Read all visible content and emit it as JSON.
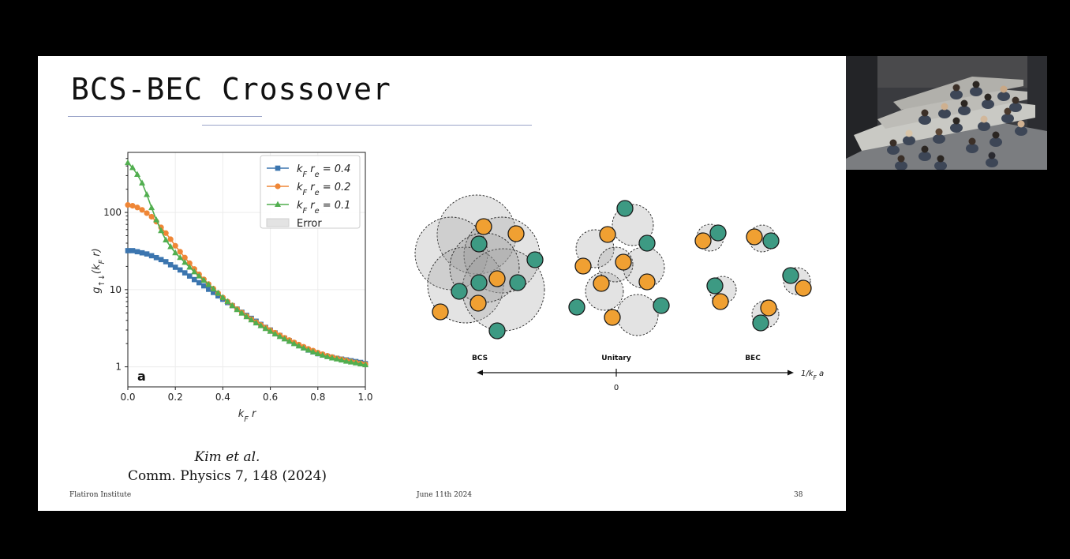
{
  "slide": {
    "title": "BCS-BEC Crossover",
    "footer_left": "Flatiron Institute",
    "footer_center": "June 11th 2024",
    "footer_right": "38"
  },
  "citation": {
    "authors": "Kim et al.",
    "journal": "Comm. Physics 7, 148 (2024)"
  },
  "chart_data": {
    "type": "line",
    "xlabel": "k_F r",
    "ylabel": "g_{↑↓}(k_F r)",
    "xlim": [
      0,
      1
    ],
    "ylim": [
      0.55,
      600
    ],
    "yscale": "log",
    "xticks": [
      "0.0",
      "0.2",
      "0.4",
      "0.6",
      "0.8",
      "1.0"
    ],
    "yticks": [
      "1",
      "10",
      "100"
    ],
    "panel_label": "a",
    "grid": true,
    "legend": "top-right",
    "legend_extra": "Error",
    "x": [
      0.0,
      0.02,
      0.04,
      0.06,
      0.08,
      0.1,
      0.12,
      0.14,
      0.16,
      0.18,
      0.2,
      0.22,
      0.24,
      0.26,
      0.28,
      0.3,
      0.32,
      0.34,
      0.36,
      0.38,
      0.4,
      0.42,
      0.44,
      0.46,
      0.48,
      0.5,
      0.52,
      0.54,
      0.56,
      0.58,
      0.6,
      0.62,
      0.64,
      0.66,
      0.68,
      0.7,
      0.72,
      0.74,
      0.76,
      0.78,
      0.8,
      0.82,
      0.84,
      0.86,
      0.88,
      0.9,
      0.92,
      0.94,
      0.96,
      0.98,
      1.0
    ],
    "series": [
      {
        "name": "k_F r_e = 0.4",
        "color": "#3b75af",
        "marker": "square",
        "values": [
          32,
          32,
          31,
          30,
          29,
          27.5,
          26,
          24.5,
          23,
          21,
          19.5,
          18,
          16.5,
          15,
          13.5,
          12.3,
          11.2,
          10.1,
          9.2,
          8.3,
          7.5,
          6.8,
          6.2,
          5.6,
          5.1,
          4.65,
          4.25,
          3.9,
          3.55,
          3.25,
          3.0,
          2.75,
          2.55,
          2.35,
          2.18,
          2.02,
          1.88,
          1.76,
          1.65,
          1.56,
          1.48,
          1.42,
          1.37,
          1.33,
          1.29,
          1.26,
          1.23,
          1.2,
          1.17,
          1.14,
          1.1
        ]
      },
      {
        "name": "k_F r_e = 0.2",
        "color": "#ef8636",
        "marker": "circle",
        "values": [
          125,
          122,
          116,
          108,
          98,
          88,
          76,
          64,
          54,
          45,
          37,
          31,
          26,
          22,
          18.5,
          15.8,
          13.6,
          11.8,
          10.3,
          9.0,
          7.9,
          7.0,
          6.25,
          5.6,
          5.05,
          4.55,
          4.15,
          3.8,
          3.5,
          3.22,
          2.98,
          2.76,
          2.56,
          2.38,
          2.22,
          2.07,
          1.94,
          1.82,
          1.71,
          1.62,
          1.53,
          1.46,
          1.39,
          1.34,
          1.29,
          1.25,
          1.21,
          1.17,
          1.14,
          1.11,
          1.08
        ]
      },
      {
        "name": "k_F r_e = 0.1",
        "color": "#51ae4f",
        "marker": "triangle",
        "values": [
          440,
          380,
          310,
          240,
          170,
          115,
          80,
          58,
          44,
          36,
          30,
          26,
          22.5,
          19.5,
          17,
          15,
          13.2,
          11.6,
          10.2,
          9.0,
          7.9,
          7.0,
          6.2,
          5.5,
          4.95,
          4.45,
          4.05,
          3.7,
          3.4,
          3.12,
          2.88,
          2.66,
          2.46,
          2.29,
          2.13,
          1.99,
          1.86,
          1.75,
          1.65,
          1.56,
          1.48,
          1.41,
          1.35,
          1.3,
          1.26,
          1.22,
          1.18,
          1.15,
          1.12,
          1.09,
          1.06
        ]
      }
    ]
  },
  "diagram": {
    "label_bcs": "BCS",
    "label_unitary": "Unitary",
    "label_bec": "BEC",
    "axis_zero": "0",
    "axis_label": "1/k_F a",
    "color_teal": "#3d9a83",
    "color_orange": "#f0a032"
  }
}
